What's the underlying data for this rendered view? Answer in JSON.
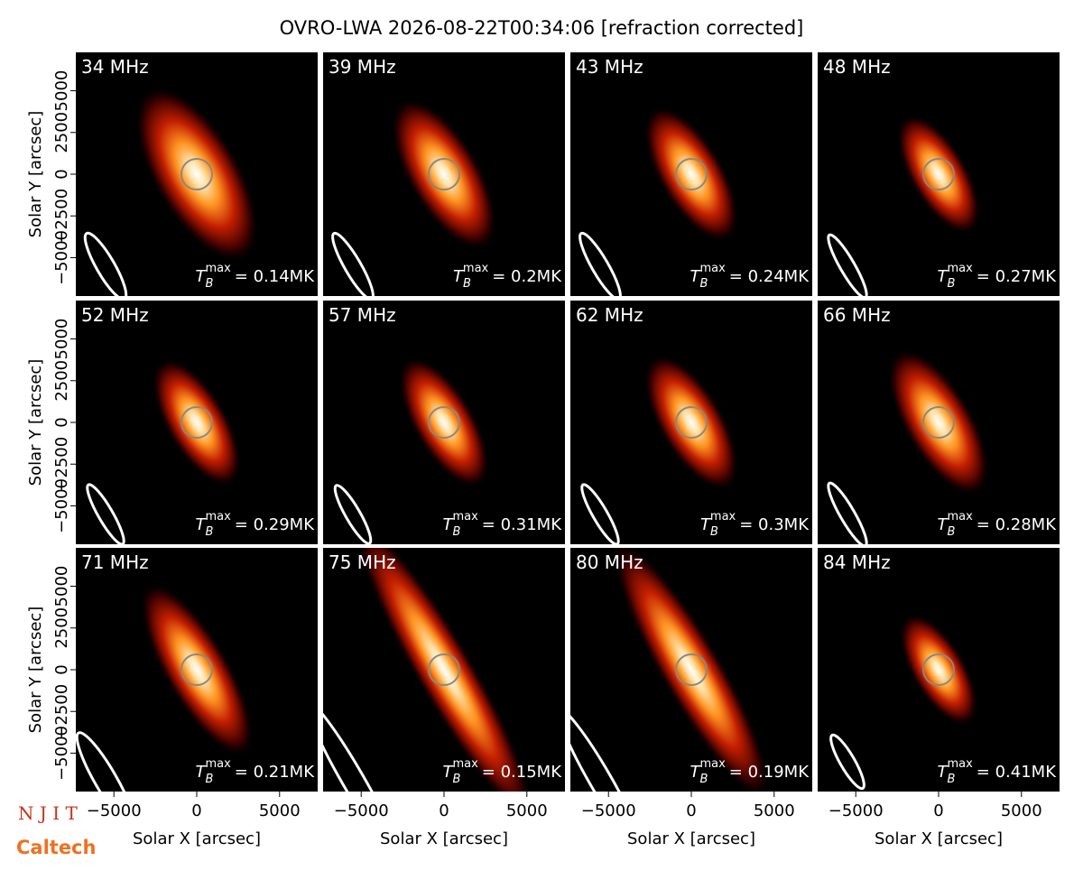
{
  "title": "OVRO-LWA 2026-08-22T00:34:06 [refraction corrected]",
  "axes": {
    "xlabel": "Solar X [arcsec]",
    "ylabel": "Solar Y [arcsec]",
    "xlim": [
      -7300,
      7300
    ],
    "ylim": [
      -7300,
      7300
    ],
    "xticks": [
      {
        "value": -5000,
        "label": "−5000"
      },
      0,
      5000
    ],
    "yticks": [
      {
        "value": -5000,
        "label": "−5000"
      },
      {
        "value": -2500,
        "label": "−2500"
      },
      0,
      2500,
      5000
    ]
  },
  "tb_symbol": {
    "base": "T",
    "sub": "B",
    "sup": "max"
  },
  "chart_data": [
    {
      "type": "image",
      "title": "34 MHz",
      "annotation": "= 0.14MK"
    },
    {
      "type": "image",
      "title": "39 MHz",
      "annotation": "= 0.2MK"
    },
    {
      "type": "image",
      "title": "43 MHz",
      "annotation": "= 0.24MK"
    },
    {
      "type": "image",
      "title": "48 MHz",
      "annotation": "= 0.27MK"
    },
    {
      "type": "image",
      "title": "52 MHz",
      "annotation": "= 0.29MK"
    },
    {
      "type": "image",
      "title": "57 MHz",
      "annotation": "= 0.31MK"
    },
    {
      "type": "image",
      "title": "62 MHz",
      "annotation": "= 0.3MK"
    },
    {
      "type": "image",
      "title": "66 MHz",
      "annotation": "= 0.28MK"
    },
    {
      "type": "image",
      "title": "71 MHz",
      "annotation": "= 0.21MK"
    },
    {
      "type": "image",
      "title": "75 MHz",
      "annotation": "= 0.15MK"
    },
    {
      "type": "image",
      "title": "80 MHz",
      "annotation": "= 0.19MK"
    },
    {
      "type": "image",
      "title": "84 MHz",
      "annotation": "= 0.41MK"
    }
  ],
  "logos": [
    "N J I T",
    "Caltech"
  ]
}
